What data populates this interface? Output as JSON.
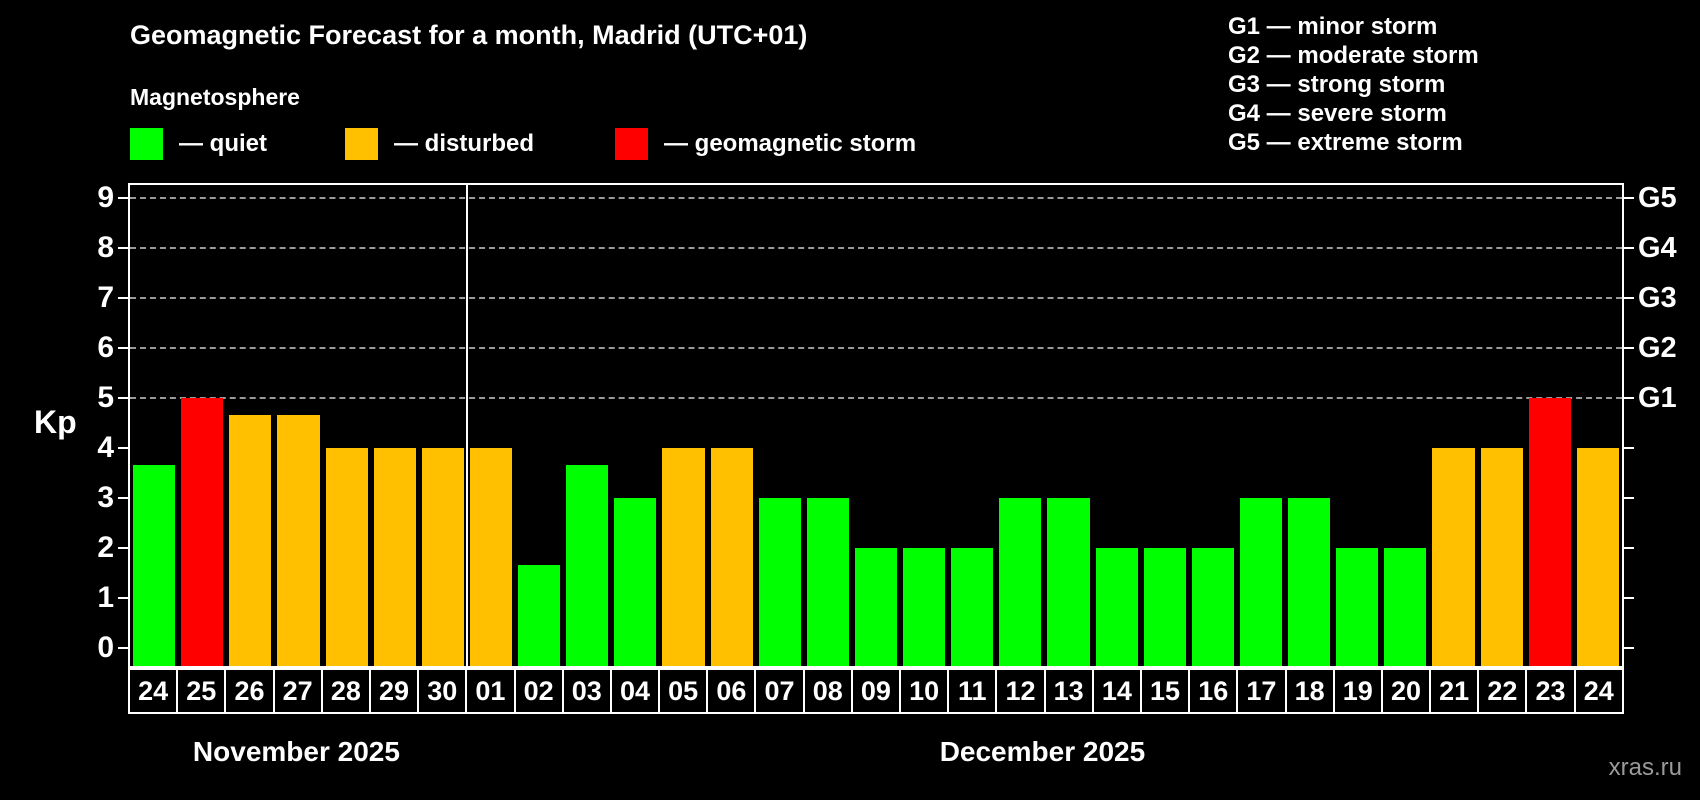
{
  "header": {
    "title": "Geomagnetic Forecast for a month, Madrid (UTC+01)",
    "subtitle": "Magnetosphere",
    "legend": [
      {
        "key": "quiet",
        "label": "— quiet"
      },
      {
        "key": "disturbed",
        "label": "— disturbed"
      },
      {
        "key": "storm",
        "label": "— geomagnetic storm"
      }
    ],
    "storm_scale": [
      "G1 — minor storm",
      "G2 — moderate storm",
      "G3 — strong storm",
      "G4 — severe storm",
      "G5 — extreme storm"
    ]
  },
  "colors": {
    "quiet": "#00ff00",
    "disturbed": "#ffc000",
    "storm": "#ff0000",
    "axis": "#ffffff",
    "grid": "#9a9a9a",
    "watermark": "#9a9a9a"
  },
  "footer": {
    "watermark": "xras.ru"
  },
  "chart_data": {
    "type": "bar",
    "title": "Geomagnetic Forecast for a month, Madrid (UTC+01)",
    "xlabel": "",
    "ylabel": "Kp",
    "ylim": [
      0,
      9
    ],
    "yticks": [
      0,
      1,
      2,
      3,
      4,
      5,
      6,
      7,
      8,
      9
    ],
    "gridlines_at": [
      5,
      6,
      7,
      8,
      9
    ],
    "grid": "dashed, only at storm levels G1–G5",
    "legend_position": "top",
    "right_axis": [
      {
        "kp": 5,
        "label": "G1"
      },
      {
        "kp": 6,
        "label": "G2"
      },
      {
        "kp": 7,
        "label": "G3"
      },
      {
        "kp": 8,
        "label": "G4"
      },
      {
        "kp": 9,
        "label": "G5"
      }
    ],
    "months": [
      {
        "label": "November 2025",
        "days": 7
      },
      {
        "label": "December 2025",
        "days": 24
      }
    ],
    "bars": [
      {
        "day": "24",
        "month": "November 2025",
        "kp": 3.67,
        "status": "quiet"
      },
      {
        "day": "25",
        "month": "November 2025",
        "kp": 5.0,
        "status": "storm"
      },
      {
        "day": "26",
        "month": "November 2025",
        "kp": 4.67,
        "status": "disturbed"
      },
      {
        "day": "27",
        "month": "November 2025",
        "kp": 4.67,
        "status": "disturbed"
      },
      {
        "day": "28",
        "month": "November 2025",
        "kp": 4.0,
        "status": "disturbed"
      },
      {
        "day": "29",
        "month": "November 2025",
        "kp": 4.0,
        "status": "disturbed"
      },
      {
        "day": "30",
        "month": "November 2025",
        "kp": 4.0,
        "status": "disturbed"
      },
      {
        "day": "01",
        "month": "December 2025",
        "kp": 4.0,
        "status": "disturbed"
      },
      {
        "day": "02",
        "month": "December 2025",
        "kp": 1.67,
        "status": "quiet"
      },
      {
        "day": "03",
        "month": "December 2025",
        "kp": 3.67,
        "status": "quiet"
      },
      {
        "day": "04",
        "month": "December 2025",
        "kp": 3.0,
        "status": "quiet"
      },
      {
        "day": "05",
        "month": "December 2025",
        "kp": 4.0,
        "status": "disturbed"
      },
      {
        "day": "06",
        "month": "December 2025",
        "kp": 4.0,
        "status": "disturbed"
      },
      {
        "day": "07",
        "month": "December 2025",
        "kp": 3.0,
        "status": "quiet"
      },
      {
        "day": "08",
        "month": "December 2025",
        "kp": 3.0,
        "status": "quiet"
      },
      {
        "day": "09",
        "month": "December 2025",
        "kp": 2.0,
        "status": "quiet"
      },
      {
        "day": "10",
        "month": "December 2025",
        "kp": 2.0,
        "status": "quiet"
      },
      {
        "day": "11",
        "month": "December 2025",
        "kp": 2.0,
        "status": "quiet"
      },
      {
        "day": "12",
        "month": "December 2025",
        "kp": 3.0,
        "status": "quiet"
      },
      {
        "day": "13",
        "month": "December 2025",
        "kp": 3.0,
        "status": "quiet"
      },
      {
        "day": "14",
        "month": "December 2025",
        "kp": 2.0,
        "status": "quiet"
      },
      {
        "day": "15",
        "month": "December 2025",
        "kp": 2.0,
        "status": "quiet"
      },
      {
        "day": "16",
        "month": "December 2025",
        "kp": 2.0,
        "status": "quiet"
      },
      {
        "day": "17",
        "month": "December 2025",
        "kp": 3.0,
        "status": "quiet"
      },
      {
        "day": "18",
        "month": "December 2025",
        "kp": 3.0,
        "status": "quiet"
      },
      {
        "day": "19",
        "month": "December 2025",
        "kp": 2.0,
        "status": "quiet"
      },
      {
        "day": "20",
        "month": "December 2025",
        "kp": 2.0,
        "status": "quiet"
      },
      {
        "day": "21",
        "month": "December 2025",
        "kp": 4.0,
        "status": "disturbed"
      },
      {
        "day": "22",
        "month": "December 2025",
        "kp": 4.0,
        "status": "disturbed"
      },
      {
        "day": "23",
        "month": "December 2025",
        "kp": 5.0,
        "status": "storm"
      },
      {
        "day": "24",
        "month": "December 2025",
        "kp": 4.0,
        "status": "disturbed"
      }
    ]
  }
}
